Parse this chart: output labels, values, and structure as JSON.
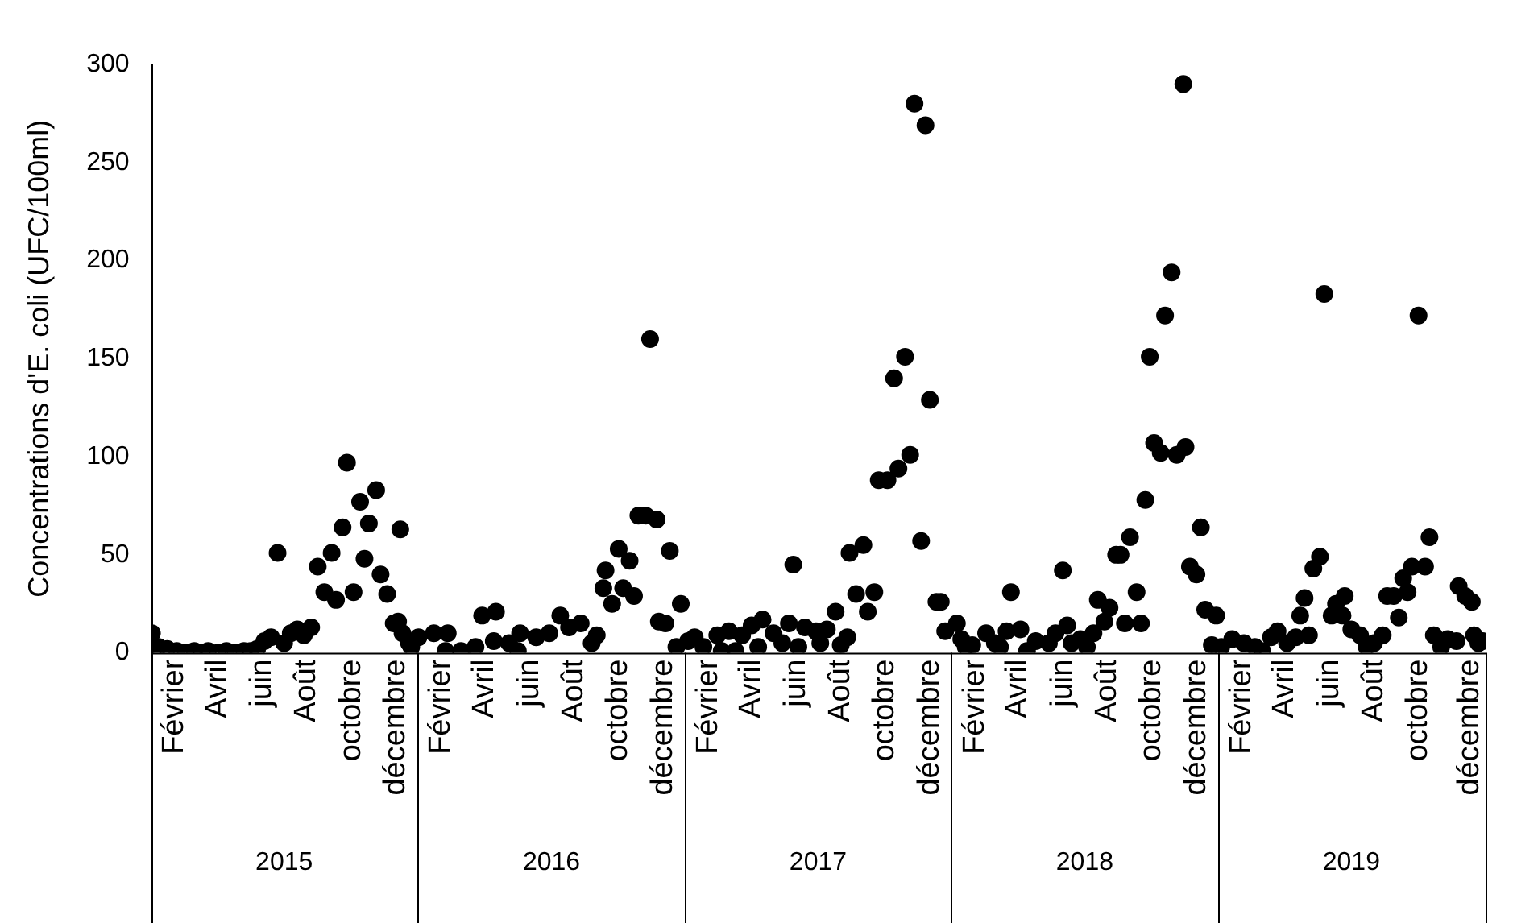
{
  "chart_data": {
    "type": "scatter",
    "ylabel": "Concentrations d'E. coli (UFC/100ml)",
    "marker": "circle",
    "grid": false,
    "legend": false,
    "xlim": [
      "2015-01-01",
      "2020-01-01"
    ],
    "ylim": [
      0,
      300
    ],
    "yticks": [
      0,
      50,
      100,
      150,
      200,
      250,
      300
    ],
    "xticks": [
      {
        "value": "2015-02-01",
        "label": "Février"
      },
      {
        "value": "2015-04-01",
        "label": "Avril"
      },
      {
        "value": "2015-06-01",
        "label": "juin"
      },
      {
        "value": "2015-08-01",
        "label": "Août"
      },
      {
        "value": "2015-10-01",
        "label": "octobre"
      },
      {
        "value": "2015-12-01",
        "label": "décembre"
      },
      {
        "value": "2016-02-01",
        "label": "Février"
      },
      {
        "value": "2016-04-01",
        "label": "Avril"
      },
      {
        "value": "2016-06-01",
        "label": "juin"
      },
      {
        "value": "2016-08-01",
        "label": "Août"
      },
      {
        "value": "2016-10-01",
        "label": "octobre"
      },
      {
        "value": "2016-12-01",
        "label": "décembre"
      },
      {
        "value": "2017-02-01",
        "label": "Février"
      },
      {
        "value": "2017-04-01",
        "label": "Avril"
      },
      {
        "value": "2017-06-01",
        "label": "juin"
      },
      {
        "value": "2017-08-01",
        "label": "Août"
      },
      {
        "value": "2017-10-01",
        "label": "octobre"
      },
      {
        "value": "2017-12-01",
        "label": "décembre"
      },
      {
        "value": "2018-02-01",
        "label": "Février"
      },
      {
        "value": "2018-04-01",
        "label": "Avril"
      },
      {
        "value": "2018-06-01",
        "label": "juin"
      },
      {
        "value": "2018-08-01",
        "label": "Août"
      },
      {
        "value": "2018-10-01",
        "label": "octobre"
      },
      {
        "value": "2018-12-01",
        "label": "décembre"
      },
      {
        "value": "2019-02-01",
        "label": "Février"
      },
      {
        "value": "2019-04-01",
        "label": "Avril"
      },
      {
        "value": "2019-06-01",
        "label": "juin"
      },
      {
        "value": "2019-08-01",
        "label": "Août"
      },
      {
        "value": "2019-10-01",
        "label": "octobre"
      },
      {
        "value": "2019-12-10",
        "label": "décembre"
      }
    ],
    "x2lim": [
      "2015-01-01",
      "2020-01-01"
    ],
    "x2ticks": [
      {
        "value": "2015-07-01",
        "label": "2015"
      },
      {
        "value": "2016-07-01",
        "label": "2016"
      },
      {
        "value": "2017-07-01",
        "label": "2017"
      },
      {
        "value": "2018-07-01",
        "label": "2018"
      },
      {
        "value": "2019-07-01",
        "label": "2019"
      }
    ],
    "series": [
      {
        "color": "#000000",
        "x": [
          "2015-01-01",
          "2015-01-10",
          "2015-01-22",
          "2015-02-04",
          "2015-02-16",
          "2015-02-28",
          "2015-03-10",
          "2015-03-19",
          "2015-04-01",
          "2015-04-13",
          "2015-04-25",
          "2015-05-07",
          "2015-05-16",
          "2015-05-25",
          "2015-06-04",
          "2015-06-13",
          "2015-06-22",
          "2015-07-01",
          "2015-07-10",
          "2015-07-19",
          "2015-07-28",
          "2015-08-07",
          "2015-08-16",
          "2015-08-25",
          "2015-09-04",
          "2015-09-10",
          "2015-09-19",
          "2015-09-25",
          "2015-10-04",
          "2015-10-13",
          "2015-10-19",
          "2015-10-25",
          "2015-11-04",
          "2015-11-10",
          "2015-11-19",
          "2015-11-28",
          "2015-12-04",
          "2015-12-07",
          "2015-12-10",
          "2015-12-19",
          "2015-12-22",
          "2016-01-01",
          "2016-01-22",
          "2016-02-07",
          "2016-02-10",
          "2016-02-28",
          "2016-03-19",
          "2016-03-28",
          "2016-04-13",
          "2016-04-16",
          "2016-05-04",
          "2016-05-16",
          "2016-05-19",
          "2016-06-10",
          "2016-06-28",
          "2016-07-13",
          "2016-07-25",
          "2016-08-10",
          "2016-08-25",
          "2016-09-01",
          "2016-09-10",
          "2016-09-13",
          "2016-09-22",
          "2016-10-01",
          "2016-10-07",
          "2016-10-16",
          "2016-10-22",
          "2016-10-28",
          "2016-11-07",
          "2016-11-13",
          "2016-11-22",
          "2016-11-25",
          "2016-12-04",
          "2016-12-10",
          "2016-12-19",
          "2016-12-25",
          "2017-01-04",
          "2017-01-13",
          "2017-01-25",
          "2017-02-13",
          "2017-02-19",
          "2017-03-01",
          "2017-03-10",
          "2017-03-19",
          "2017-04-01",
          "2017-04-10",
          "2017-04-16",
          "2017-05-01",
          "2017-05-13",
          "2017-05-22",
          "2017-05-28",
          "2017-06-04",
          "2017-06-13",
          "2017-06-28",
          "2017-07-04",
          "2017-07-13",
          "2017-07-25",
          "2017-08-01",
          "2017-08-10",
          "2017-08-13",
          "2017-08-22",
          "2017-09-01",
          "2017-09-07",
          "2017-09-16",
          "2017-09-22",
          "2017-10-04",
          "2017-10-13",
          "2017-10-19",
          "2017-10-28",
          "2017-11-04",
          "2017-11-10",
          "2017-11-19",
          "2017-11-25",
          "2017-12-01",
          "2017-12-10",
          "2017-12-16",
          "2017-12-22",
          "2018-01-07",
          "2018-01-13",
          "2018-01-19",
          "2018-01-28",
          "2018-02-16",
          "2018-02-28",
          "2018-03-07",
          "2018-03-16",
          "2018-03-22",
          "2018-04-04",
          "2018-04-13",
          "2018-04-25",
          "2018-05-13",
          "2018-05-22",
          "2018-06-01",
          "2018-06-07",
          "2018-06-13",
          "2018-06-25",
          "2018-07-04",
          "2018-07-13",
          "2018-07-19",
          "2018-07-28",
          "2018-08-04",
          "2018-08-13",
          "2018-08-19",
          "2018-08-25",
          "2018-09-01",
          "2018-09-10",
          "2018-09-16",
          "2018-09-22",
          "2018-09-28",
          "2018-10-04",
          "2018-10-13",
          "2018-10-19",
          "2018-10-28",
          "2018-11-04",
          "2018-11-13",
          "2018-11-16",
          "2018-11-22",
          "2018-12-01",
          "2018-12-07",
          "2018-12-13",
          "2018-12-22",
          "2018-12-28",
          "2019-01-04",
          "2019-01-19",
          "2019-02-04",
          "2019-02-19",
          "2019-03-01",
          "2019-03-13",
          "2019-03-22",
          "2019-04-04",
          "2019-04-16",
          "2019-04-22",
          "2019-04-28",
          "2019-05-04",
          "2019-05-10",
          "2019-05-19",
          "2019-05-25",
          "2019-06-04",
          "2019-06-10",
          "2019-06-19",
          "2019-06-22",
          "2019-07-01",
          "2019-07-13",
          "2019-07-22",
          "2019-08-01",
          "2019-08-13",
          "2019-08-19",
          "2019-08-28",
          "2019-09-04",
          "2019-09-10",
          "2019-09-16",
          "2019-09-22",
          "2019-10-01",
          "2019-10-10",
          "2019-10-16",
          "2019-10-22",
          "2019-11-01",
          "2019-11-10",
          "2019-11-22",
          "2019-11-25",
          "2019-12-04",
          "2019-12-13",
          "2019-12-16",
          "2019-12-22",
          "2019-12-28"
        ],
        "values": [
          10,
          3,
          2,
          1,
          0,
          1,
          0,
          1,
          0,
          1,
          0,
          1,
          1,
          2,
          6,
          8,
          51,
          5,
          10,
          12,
          9,
          13,
          44,
          31,
          51,
          27,
          64,
          97,
          31,
          77,
          48,
          66,
          83,
          40,
          30,
          15,
          16,
          63,
          10,
          5,
          3,
          8,
          10,
          1,
          10,
          1,
          3,
          19,
          6,
          21,
          5,
          1,
          10,
          8,
          10,
          19,
          13,
          15,
          5,
          9,
          33,
          42,
          25,
          53,
          33,
          47,
          29,
          70,
          70,
          160,
          68,
          16,
          15,
          52,
          3,
          25,
          6,
          8,
          3,
          9,
          1,
          11,
          1,
          9,
          14,
          3,
          17,
          10,
          5,
          15,
          45,
          3,
          13,
          11,
          5,
          12,
          21,
          4,
          8,
          51,
          30,
          55,
          21,
          31,
          88,
          88,
          140,
          94,
          151,
          101,
          280,
          57,
          269,
          129,
          26,
          26,
          11,
          15,
          7,
          3,
          4,
          10,
          5,
          3,
          11,
          31,
          12,
          1,
          6,
          5,
          10,
          42,
          14,
          5,
          7,
          3,
          10,
          27,
          16,
          23,
          50,
          50,
          15,
          59,
          31,
          15,
          78,
          151,
          107,
          102,
          172,
          194,
          101,
          290,
          105,
          44,
          40,
          64,
          22,
          4,
          19,
          3,
          7,
          5,
          3,
          1,
          8,
          11,
          5,
          8,
          19,
          28,
          9,
          43,
          49,
          183,
          19,
          25,
          19,
          29,
          12,
          9,
          3,
          5,
          9,
          29,
          29,
          18,
          38,
          31,
          44,
          172,
          44,
          59,
          9,
          3,
          7,
          6,
          34,
          29,
          26,
          9,
          5,
          6
        ]
      }
    ]
  }
}
